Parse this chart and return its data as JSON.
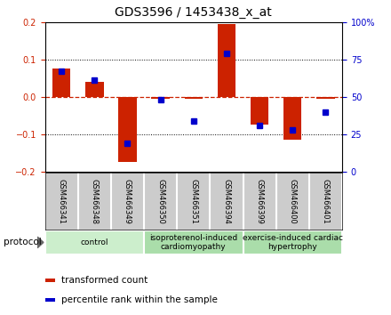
{
  "title": "GDS3596 / 1453438_x_at",
  "samples": [
    "GSM466341",
    "GSM466348",
    "GSM466349",
    "GSM466350",
    "GSM466351",
    "GSM466394",
    "GSM466399",
    "GSM466400",
    "GSM466401"
  ],
  "transformed_count": [
    0.075,
    0.04,
    -0.175,
    -0.005,
    -0.005,
    0.195,
    -0.075,
    -0.115,
    -0.005
  ],
  "percentile_rank_pct": [
    67,
    61,
    19,
    48,
    34,
    79,
    31,
    28,
    40
  ],
  "left_ylim": [
    -0.2,
    0.2
  ],
  "right_ylim": [
    0,
    100
  ],
  "left_yticks": [
    -0.2,
    -0.1,
    0.0,
    0.1,
    0.2
  ],
  "right_yticks": [
    0,
    25,
    50,
    75,
    100
  ],
  "bar_color": "#cc2200",
  "dot_color": "#0000cc",
  "groups": [
    {
      "label": "control",
      "start": 0,
      "end": 3,
      "color": "#cceecc"
    },
    {
      "label": "isoproterenol-induced\ncardiomyopathy",
      "start": 3,
      "end": 6,
      "color": "#aaddaa"
    },
    {
      "label": "exercise-induced cardiac\nhypertrophy",
      "start": 6,
      "end": 9,
      "color": "#aaddaa"
    }
  ],
  "protocol_label": "protocol",
  "legend_items": [
    {
      "color": "#cc2200",
      "label": "transformed count"
    },
    {
      "color": "#0000cc",
      "label": "percentile rank within the sample"
    }
  ],
  "background_color": "#ffffff",
  "zero_line_color": "#cc2200",
  "title_fontsize": 10,
  "tick_fontsize": 7,
  "sample_fontsize": 6,
  "group_fontsize": 6.5,
  "legend_fontsize": 7.5
}
